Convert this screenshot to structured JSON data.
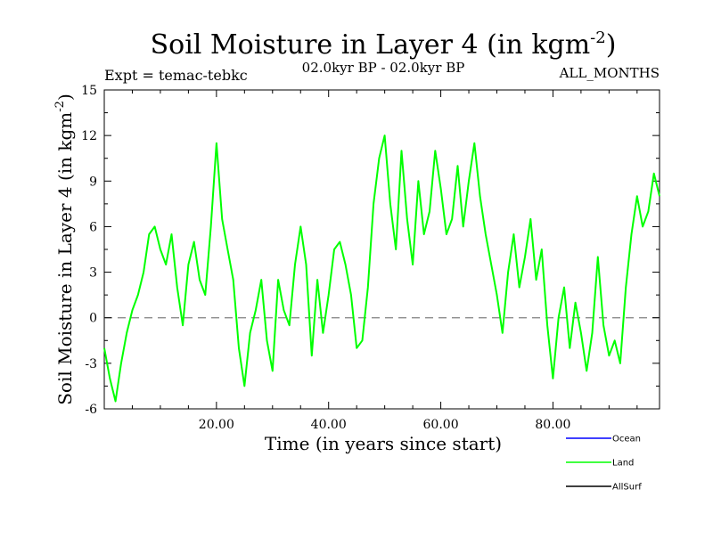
{
  "chart_data": {
    "type": "line",
    "title_main": "Soil Moisture in Layer 4 (in kgm",
    "title_sup": "-2",
    "title_close": ")",
    "subtitle_left": "Expt = temac-tebkc",
    "subtitle_center": "02.0kyr BP - 02.0kyr BP",
    "subtitle_right": "ALL_MONTHS",
    "xlabel": "Time (in years since start)",
    "ylabel_main": "Soil Moisture in Layer 4 (in kgm",
    "ylabel_sup": "-2",
    "ylabel_close": ")",
    "xlim": [
      0,
      99
    ],
    "ylim": [
      -6,
      15
    ],
    "xticks": [
      20,
      40,
      60,
      80
    ],
    "xtick_labels": [
      "20.00",
      "40.00",
      "60.00",
      "80.00"
    ],
    "yticks": [
      -6,
      -3,
      0,
      3,
      6,
      9,
      12,
      15
    ],
    "ytick_labels": [
      "-6",
      "-3",
      "0",
      "3",
      "6",
      "9",
      "12",
      "15"
    ],
    "reference_line": {
      "y": 0,
      "style": "dashed",
      "color": "#808080"
    },
    "legend": [
      {
        "name": "Ocean",
        "color": "#0000ff"
      },
      {
        "name": "Land",
        "color": "#00ff00"
      },
      {
        "name": "AllSurf",
        "color": "#000000"
      }
    ],
    "series": [
      {
        "name": "Land",
        "color": "#00ff00",
        "x": [
          0,
          1,
          2,
          3,
          4,
          5,
          6,
          7,
          8,
          9,
          10,
          11,
          12,
          13,
          14,
          15,
          16,
          17,
          18,
          19,
          20,
          21,
          22,
          23,
          24,
          25,
          26,
          27,
          28,
          29,
          30,
          31,
          32,
          33,
          34,
          35,
          36,
          37,
          38,
          39,
          40,
          41,
          42,
          43,
          44,
          45,
          46,
          47,
          48,
          49,
          50,
          51,
          52,
          53,
          54,
          55,
          56,
          57,
          58,
          59,
          60,
          61,
          62,
          63,
          64,
          65,
          66,
          67,
          68,
          69,
          70,
          71,
          72,
          73,
          74,
          75,
          76,
          77,
          78,
          79,
          80,
          81,
          82,
          83,
          84,
          85,
          86,
          87,
          88,
          89,
          90,
          91,
          92,
          93,
          94,
          95,
          96,
          97,
          98,
          99
        ],
        "y": [
          -2,
          -4,
          -5.5,
          -3,
          -1,
          0.5,
          1.5,
          3,
          5.5,
          6,
          4.5,
          3.5,
          5.5,
          2,
          -0.5,
          3.5,
          5,
          2.5,
          1.5,
          6,
          11.5,
          6.5,
          4.5,
          2.5,
          -2,
          -4.5,
          -1,
          0.5,
          2.5,
          -1.5,
          -3.5,
          2.5,
          0.5,
          -0.5,
          3.5,
          6,
          3.5,
          -2.5,
          2.5,
          -1,
          1.5,
          4.5,
          5,
          3.5,
          1.5,
          -2,
          -1.5,
          2,
          7.5,
          10.5,
          12,
          7.5,
          4.5,
          11,
          6.5,
          3.5,
          9,
          5.5,
          7,
          11,
          8.5,
          5.5,
          6.5,
          10,
          6,
          9,
          11.5,
          8,
          5.5,
          3.5,
          1.5,
          -1,
          3,
          5.5,
          2,
          4,
          6.5,
          2.5,
          4.5,
          -0.5,
          -4,
          0,
          2,
          -2,
          1,
          -1,
          -3.5,
          -1,
          4,
          -0.5,
          -2.5,
          -1.5,
          -3,
          2,
          5.5,
          8,
          6,
          7,
          9.5,
          8
        ]
      }
    ]
  }
}
